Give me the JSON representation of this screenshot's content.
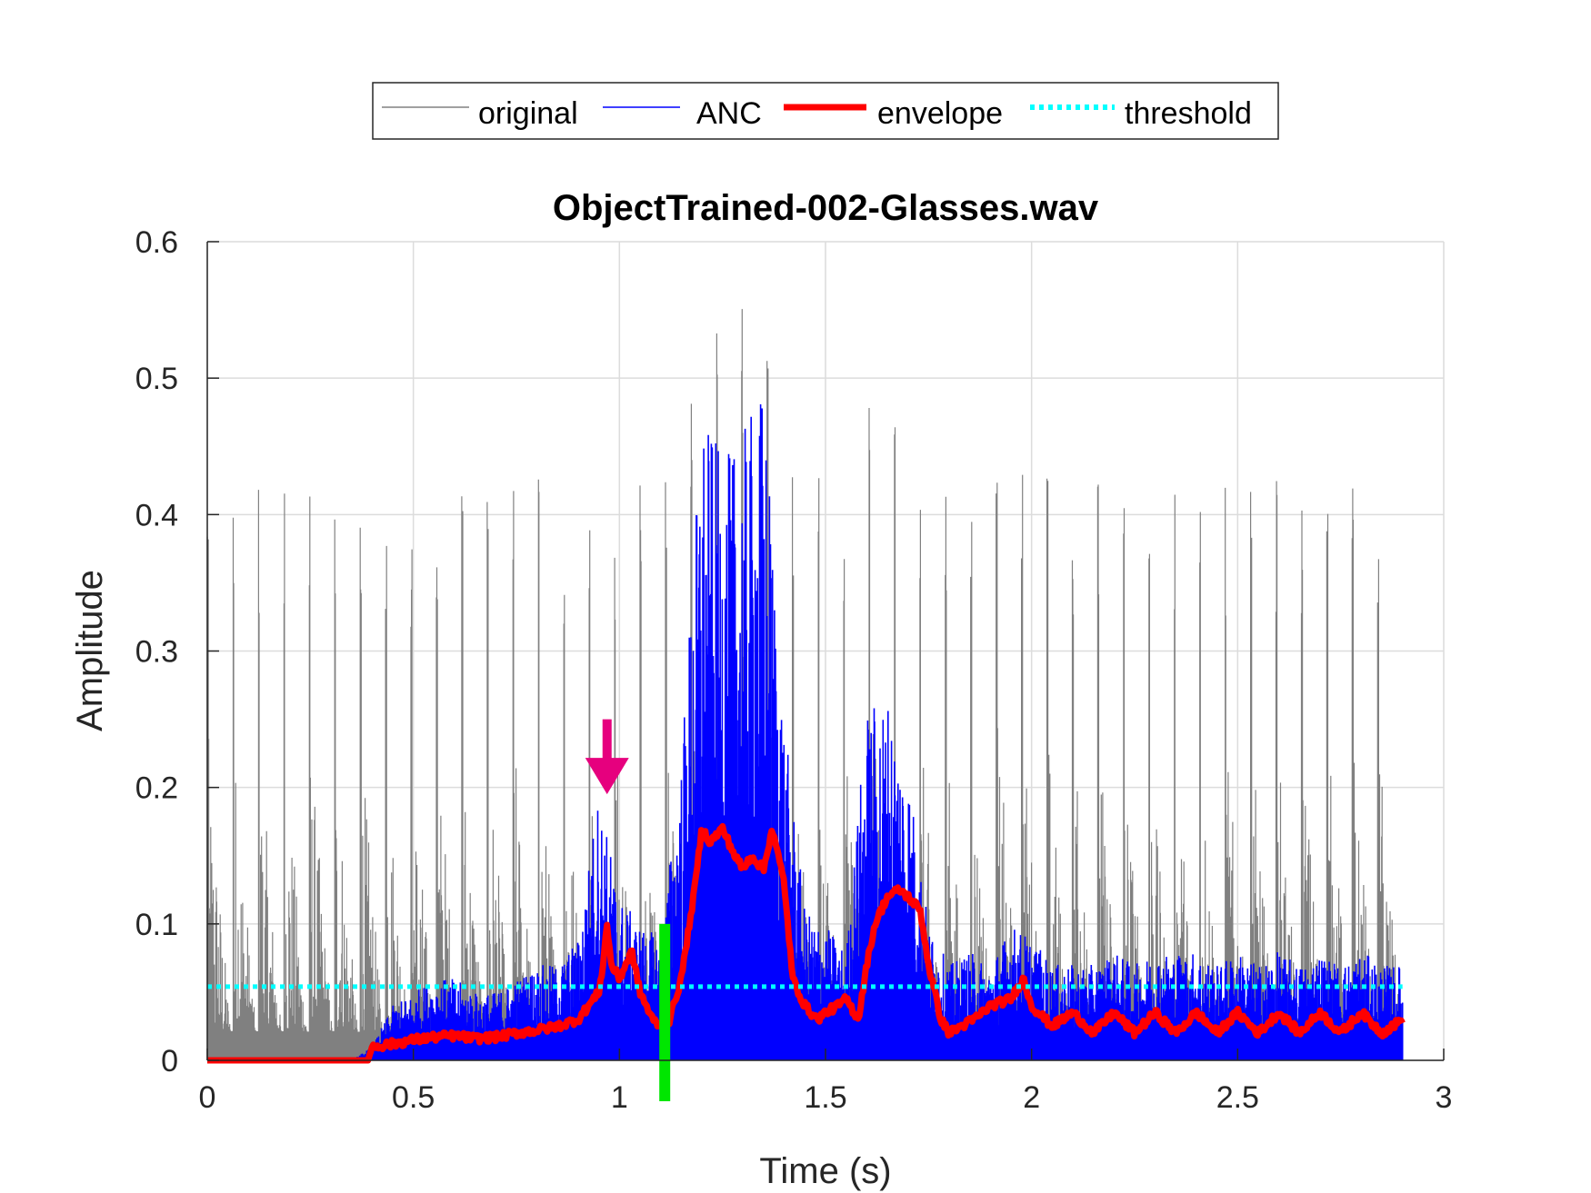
{
  "chart_data": {
    "type": "line",
    "title": "ObjectTrained-002-Glasses.wav",
    "xlabel": "Time (s)",
    "ylabel": "Amplitude",
    "xlim": [
      0,
      3
    ],
    "ylim": [
      0,
      0.6
    ],
    "x_ticks": [
      "0",
      "0.5",
      "1",
      "1.5",
      "2",
      "2.5",
      "3"
    ],
    "y_ticks": [
      "0",
      "0.1",
      "0.2",
      "0.3",
      "0.4",
      "0.5",
      "0.6"
    ],
    "grid": true,
    "legend_position": "top-center",
    "signal_end": 2.9,
    "series": [
      {
        "name": "original",
        "color": "#808080",
        "style": "thin-solid",
        "x": [
          0,
          0.05,
          0.1,
          0.15,
          0.2,
          0.25,
          0.3,
          0.35,
          0.4,
          0.45,
          0.5,
          0.55,
          0.6,
          0.65,
          0.7,
          0.75,
          0.8,
          0.85,
          0.9,
          0.95,
          1.0,
          1.05,
          1.1,
          1.15,
          1.2,
          1.25,
          1.3,
          1.35,
          1.4,
          1.45,
          1.5,
          1.55,
          1.6,
          1.65,
          1.7,
          1.75,
          1.8,
          1.85,
          1.9,
          1.95,
          2.0,
          2.05,
          2.1,
          2.15,
          2.2,
          2.25,
          2.3,
          2.35,
          2.4,
          2.45,
          2.5,
          2.55,
          2.6,
          2.65,
          2.7,
          2.75,
          2.8,
          2.85,
          2.9
        ],
        "y": [
          0.42,
          0.43,
          0.43,
          0.42,
          0.43,
          0.42,
          0.43,
          0.42,
          0.42,
          0.42,
          0.41,
          0.42,
          0.43,
          0.42,
          0.42,
          0.43,
          0.43,
          0.42,
          0.43,
          0.44,
          0.42,
          0.43,
          0.44,
          0.42,
          0.59,
          0.54,
          0.56,
          0.54,
          0.44,
          0.43,
          0.44,
          0.42,
          0.53,
          0.5,
          0.44,
          0.43,
          0.42,
          0.42,
          0.43,
          0.47,
          0.44,
          0.43,
          0.42,
          0.43,
          0.42,
          0.43,
          0.42,
          0.43,
          0.43,
          0.42,
          0.43,
          0.42,
          0.43,
          0.43,
          0.42,
          0.43,
          0.42,
          0.43,
          0.43
        ]
      },
      {
        "name": "ANC",
        "color": "#0000ff",
        "style": "thin-solid",
        "x": [
          0,
          0.05,
          0.1,
          0.15,
          0.2,
          0.25,
          0.3,
          0.35,
          0.4,
          0.45,
          0.5,
          0.55,
          0.6,
          0.65,
          0.7,
          0.75,
          0.8,
          0.85,
          0.9,
          0.95,
          1.0,
          1.05,
          1.1,
          1.15,
          1.2,
          1.25,
          1.3,
          1.35,
          1.4,
          1.45,
          1.5,
          1.55,
          1.6,
          1.65,
          1.7,
          1.75,
          1.8,
          1.85,
          1.9,
          1.95,
          2.0,
          2.05,
          2.1,
          2.15,
          2.2,
          2.25,
          2.3,
          2.35,
          2.4,
          2.45,
          2.5,
          2.55,
          2.6,
          2.65,
          2.7,
          2.75,
          2.8,
          2.85,
          2.9
        ],
        "y": [
          0,
          0,
          0,
          0,
          0,
          0,
          0,
          0,
          0.01,
          0.04,
          0.05,
          0.06,
          0.06,
          0.05,
          0.05,
          0.06,
          0.07,
          0.07,
          0.09,
          0.2,
          0.12,
          0.1,
          0.09,
          0.22,
          0.48,
          0.44,
          0.46,
          0.5,
          0.25,
          0.11,
          0.1,
          0.08,
          0.26,
          0.27,
          0.22,
          0.1,
          0.07,
          0.08,
          0.07,
          0.1,
          0.09,
          0.07,
          0.07,
          0.07,
          0.08,
          0.07,
          0.08,
          0.08,
          0.08,
          0.07,
          0.08,
          0.07,
          0.08,
          0.07,
          0.08,
          0.07,
          0.08,
          0.07,
          0.07
        ]
      },
      {
        "name": "envelope",
        "color": "#ff0000",
        "style": "thick-solid",
        "x": [
          0,
          0.39,
          0.4,
          0.45,
          0.5,
          0.55,
          0.6,
          0.65,
          0.7,
          0.75,
          0.8,
          0.85,
          0.9,
          0.95,
          0.96,
          0.97,
          0.98,
          1.0,
          1.03,
          1.05,
          1.08,
          1.1,
          1.12,
          1.15,
          1.18,
          1.2,
          1.22,
          1.25,
          1.28,
          1.3,
          1.32,
          1.35,
          1.37,
          1.4,
          1.42,
          1.45,
          1.48,
          1.5,
          1.53,
          1.55,
          1.58,
          1.6,
          1.62,
          1.65,
          1.68,
          1.7,
          1.73,
          1.75,
          1.78,
          1.8,
          1.83,
          1.86,
          1.9,
          1.95,
          1.98,
          2.0,
          2.05,
          2.1,
          2.15,
          2.2,
          2.25,
          2.3,
          2.35,
          2.4,
          2.45,
          2.5,
          2.55,
          2.6,
          2.65,
          2.7,
          2.75,
          2.8,
          2.85,
          2.9
        ],
        "y": [
          0,
          0,
          0.01,
          0.012,
          0.015,
          0.017,
          0.018,
          0.016,
          0.017,
          0.02,
          0.022,
          0.025,
          0.03,
          0.05,
          0.07,
          0.1,
          0.07,
          0.06,
          0.08,
          0.05,
          0.03,
          0.025,
          0.028,
          0.06,
          0.12,
          0.17,
          0.16,
          0.17,
          0.15,
          0.14,
          0.15,
          0.14,
          0.17,
          0.13,
          0.06,
          0.04,
          0.03,
          0.035,
          0.04,
          0.045,
          0.03,
          0.07,
          0.1,
          0.12,
          0.125,
          0.12,
          0.11,
          0.07,
          0.03,
          0.02,
          0.025,
          0.03,
          0.04,
          0.045,
          0.06,
          0.04,
          0.025,
          0.035,
          0.02,
          0.035,
          0.02,
          0.035,
          0.02,
          0.035,
          0.02,
          0.035,
          0.02,
          0.035,
          0.02,
          0.035,
          0.02,
          0.035,
          0.02,
          0.03
        ]
      },
      {
        "name": "threshold",
        "color": "#00ffff",
        "style": "dotted",
        "x": [
          0,
          2.9
        ],
        "y": [
          0.054,
          0.054
        ]
      }
    ],
    "annotations": [
      {
        "type": "arrow-down",
        "color": "#e6007e",
        "x": 0.97,
        "y_from": 0.25,
        "y_to": 0.195
      },
      {
        "type": "vertical-bar",
        "color": "#00e600",
        "x": 1.11,
        "y_from": -0.03,
        "y_to": 0.1
      }
    ]
  }
}
